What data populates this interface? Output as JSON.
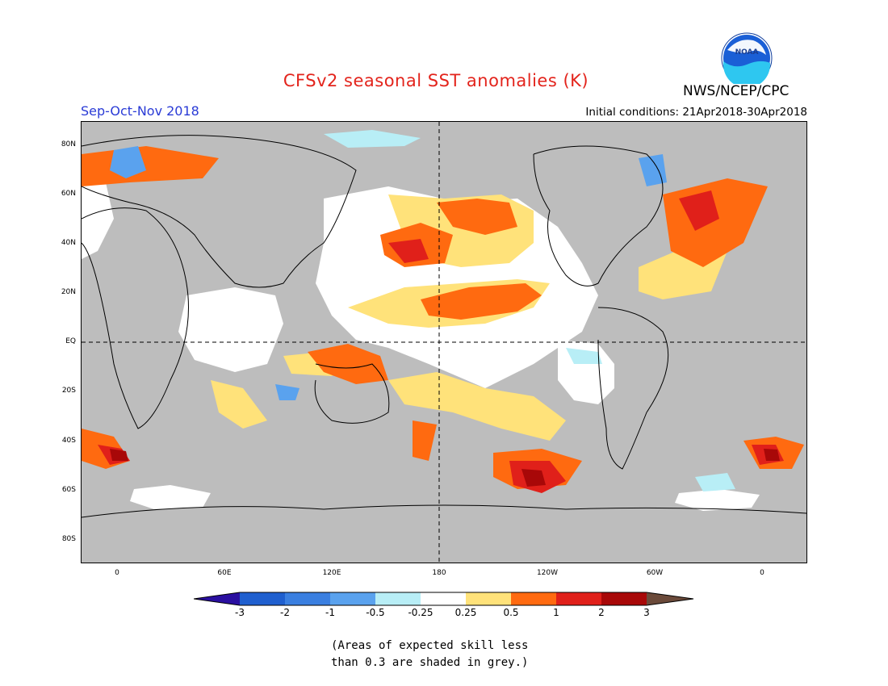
{
  "header": {
    "title": "CFSv2 seasonal SST anomalies (K)",
    "agency": "NWS/NCEP/CPC",
    "logo_text": "NOAA",
    "season": "Sep-Oct-Nov 2018",
    "initial_conditions": "Initial conditions: 21Apr2018-30Apr2018"
  },
  "map": {
    "projection": "cylindrical equidistant",
    "center_longitude": "180",
    "land_color": "#bdbdbd",
    "lat_labels": [
      "80N",
      "60N",
      "40N",
      "20N",
      "EQ",
      "20S",
      "40S",
      "60S",
      "80S"
    ],
    "lon_labels": [
      "0",
      "60E",
      "120E",
      "180",
      "120W",
      "60W",
      "0"
    ],
    "reference_lines": [
      "EQ",
      "180"
    ]
  },
  "colorbar": {
    "tick_labels": [
      "-3",
      "-2",
      "-1",
      "-0.5",
      "-0.25",
      "0.25",
      "0.5",
      "1",
      "2",
      "3"
    ],
    "colors": [
      "#2a0fa0",
      "#1f5fcf",
      "#3a7fe0",
      "#5aa2ee",
      "#b8eef6",
      "#ffffff",
      "#ffe27a",
      "#ff6a10",
      "#e0201a",
      "#a80808",
      "#6b4a3a"
    ]
  },
  "note": {
    "line1": "(Areas of expected skill less",
    "line2": "than 0.3 are shaded in grey.)"
  }
}
